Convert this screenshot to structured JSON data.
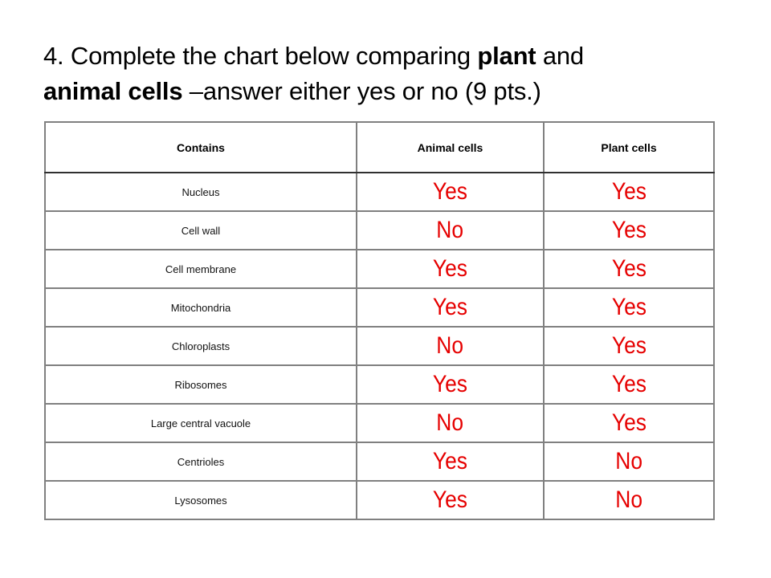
{
  "question": {
    "number": "4.",
    "text_before_bold1": " Complete the chart below comparing ",
    "bold1": "plant",
    "text_between": " and ",
    "bold2": "animal cells",
    "text_after": " –answer either yes or no (9 pts.)"
  },
  "table": {
    "headers": [
      "Contains",
      "Animal cells",
      "Plant cells"
    ],
    "rows": [
      {
        "feature": "Nucleus",
        "animal": "Yes",
        "plant": "Yes"
      },
      {
        "feature": "Cell wall",
        "animal": "No",
        "plant": "Yes"
      },
      {
        "feature": "Cell membrane",
        "animal": "Yes",
        "plant": "Yes"
      },
      {
        "feature": "Mitochondria",
        "animal": "Yes",
        "plant": "Yes"
      },
      {
        "feature": "Chloroplasts",
        "animal": "No",
        "plant": "Yes"
      },
      {
        "feature": "Ribosomes",
        "animal": "Yes",
        "plant": "Yes"
      },
      {
        "feature": "Large central vacuole",
        "animal": "No",
        "plant": "Yes"
      },
      {
        "feature": "Centrioles",
        "animal": "Yes",
        "plant": "No"
      },
      {
        "feature": "Lysosomes",
        "animal": "Yes",
        "plant": "No"
      }
    ]
  },
  "colors": {
    "answer_text": "#e60000",
    "border": "#808080"
  }
}
